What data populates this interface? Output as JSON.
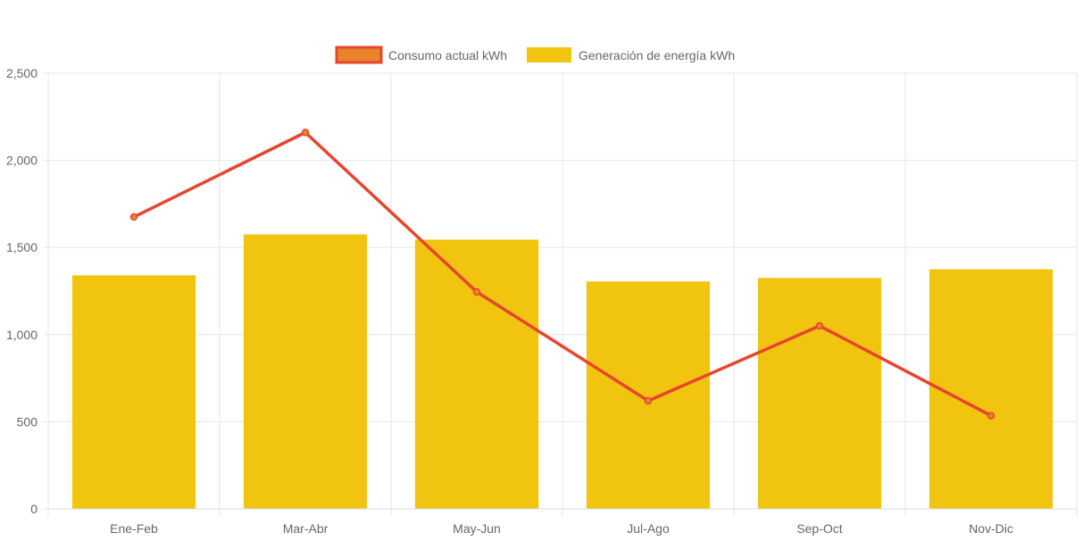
{
  "chart_data": {
    "type": "bar",
    "categories": [
      "Ene-Feb",
      "Mar-Abr",
      "May-Jun",
      "Jul-Ago",
      "Sep-Oct",
      "Nov-Dic"
    ],
    "series": [
      {
        "name": "Consumo actual kWh",
        "type": "line",
        "values": [
          1675,
          2160,
          1245,
          620,
          1050,
          535
        ],
        "color": "#e6452f",
        "point_color": "#e8832b"
      },
      {
        "name": "Generación de energía kWh",
        "type": "bar",
        "values": [
          1340,
          1575,
          1545,
          1305,
          1325,
          1375
        ],
        "color": "#f0c40f"
      }
    ],
    "ylim": [
      0,
      2500
    ],
    "yticks": [
      0,
      500,
      1000,
      1500,
      2000,
      2500
    ],
    "ytick_labels": [
      "0",
      "500",
      "1,000",
      "1,500",
      "2,000",
      "2,500"
    ],
    "grid": true,
    "legend_position": "top-center"
  }
}
